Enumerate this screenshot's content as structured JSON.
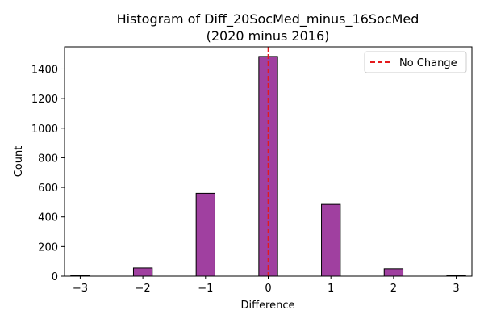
{
  "chart_data": {
    "type": "bar",
    "title_line1": "Histogram of Diff_20SocMed_minus_16SocMed",
    "title_line2": "(2020 minus 2016)",
    "xlabel": "Difference",
    "ylabel": "Count",
    "xlim": [
      -3.25,
      3.25
    ],
    "ylim": [
      0,
      1550
    ],
    "x_ticks": [
      -3,
      -2,
      -1,
      0,
      1,
      2,
      3
    ],
    "x_tick_labels": [
      "−3",
      "−2",
      "−1",
      "0",
      "1",
      "2",
      "3"
    ],
    "y_ticks": [
      0,
      200,
      400,
      600,
      800,
      1000,
      1200,
      1400
    ],
    "y_tick_labels": [
      "0",
      "200",
      "400",
      "600",
      "800",
      "1000",
      "1200",
      "1400"
    ],
    "bar_width": 0.3,
    "bins": [
      {
        "x": -3,
        "count": 5
      },
      {
        "x": -2,
        "count": 55
      },
      {
        "x": -1,
        "count": 560
      },
      {
        "x": 0,
        "count": 1485
      },
      {
        "x": 1,
        "count": 485
      },
      {
        "x": 2,
        "count": 50
      },
      {
        "x": 3,
        "count": 3
      }
    ],
    "reference_line": {
      "x": 0,
      "label": "No Change",
      "color": "#e41a1c"
    },
    "bar_color": "#a040a0",
    "edge_color": "#000000",
    "legend_position": "top-right",
    "grid": false
  }
}
